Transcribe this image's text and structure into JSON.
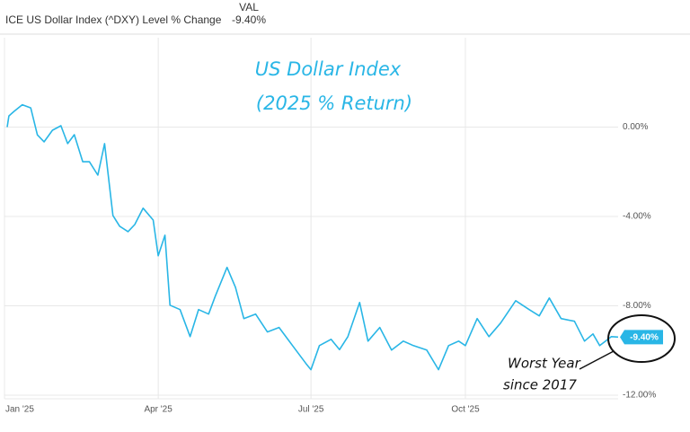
{
  "chart_data": {
    "type": "line",
    "header": "ICE US Dollar Index (^DXY) Level % Change",
    "legend_header": "VAL",
    "title": "US Dollar Index",
    "subtitle": "(2025 % Return)",
    "annotation": [
      "Worst Year",
      "since 2017"
    ],
    "x": [
      0,
      1,
      4,
      9,
      14,
      18,
      22,
      27,
      32,
      36,
      40,
      45,
      49,
      54,
      58,
      63,
      67,
      72,
      76,
      81,
      87,
      90,
      94,
      97,
      103,
      109,
      114,
      120,
      124,
      131,
      136,
      141,
      148,
      155,
      162,
      170,
      178,
      181,
      186,
      193,
      198,
      203,
      210,
      215,
      222,
      229,
      236,
      242,
      250,
      257,
      263,
      269,
      273,
      280,
      287,
      294,
      303,
      311,
      317,
      323,
      330,
      338,
      344,
      349,
      353,
      360,
      364
    ],
    "xlim": [
      0,
      364
    ],
    "xticks": [
      {
        "value": 0,
        "label": "Jan '25"
      },
      {
        "value": 90,
        "label": "Apr '25"
      },
      {
        "value": 181,
        "label": "Jul '25"
      },
      {
        "value": 273,
        "label": "Oct '25"
      }
    ],
    "series": [
      {
        "name": "ICE US Dollar Index (^DXY) Level % Change",
        "color": "#29b6e6",
        "values": [
          0,
          0.5,
          0.7,
          1.0,
          0.86,
          -0.35,
          -0.66,
          -0.14,
          0.06,
          -0.74,
          -0.34,
          -1.55,
          -1.55,
          -2.15,
          -0.74,
          -3.96,
          -4.44,
          -4.68,
          -4.36,
          -3.63,
          -4.16,
          -5.76,
          -4.84,
          -7.97,
          -8.17,
          -9.38,
          -8.17,
          -8.37,
          -7.57,
          -6.28,
          -7.17,
          -8.57,
          -8.37,
          -9.17,
          -8.97,
          -9.78,
          -10.58,
          -10.86,
          -9.78,
          -9.5,
          -9.96,
          -9.38,
          -7.85,
          -9.58,
          -8.97,
          -9.98,
          -9.58,
          -9.78,
          -9.98,
          -10.86,
          -9.78,
          -9.58,
          -9.78,
          -8.57,
          -9.38,
          -8.77,
          -7.77,
          -8.17,
          -8.45,
          -7.65,
          -8.57,
          -8.69,
          -9.58,
          -9.26,
          -9.78,
          -9.38,
          -9.4
        ],
        "value_labels": [
          null,
          null,
          null,
          null,
          null,
          null,
          null,
          null,
          null,
          null,
          null,
          null,
          null,
          null,
          null,
          null,
          null,
          null,
          null,
          null,
          null,
          null,
          null,
          null,
          null,
          null,
          null,
          null,
          null,
          null,
          null,
          null,
          null,
          null,
          null,
          null,
          null,
          null,
          null,
          null,
          null,
          null,
          null,
          null,
          null,
          null,
          null,
          null,
          null,
          null,
          null,
          null,
          null,
          null,
          null,
          null,
          null,
          null,
          null,
          null,
          null,
          null,
          null,
          null,
          null,
          null,
          "-9.40%"
        ]
      }
    ],
    "ylim": [
      -12,
      4
    ],
    "yticks": [
      {
        "value": 0,
        "label": "0.00%"
      },
      {
        "value": -4,
        "label": "-4.00%"
      },
      {
        "value": -8,
        "label": "-8.00%"
      },
      {
        "value": -12,
        "label": "-12.00%"
      }
    ],
    "grid": true
  }
}
